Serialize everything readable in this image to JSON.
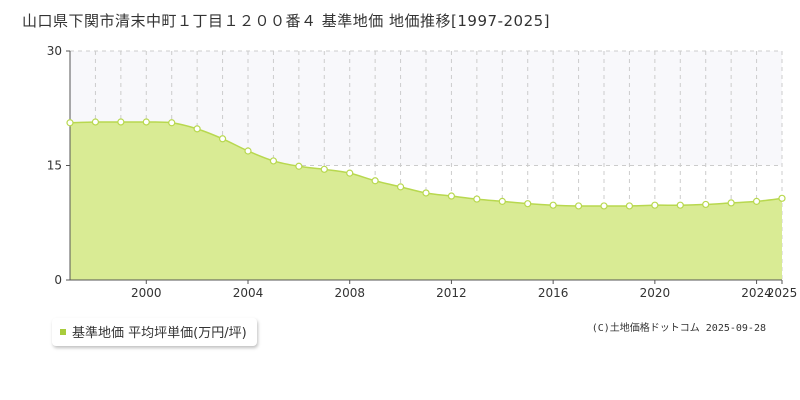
{
  "title": "山口県下関市清末中町１丁目１２００番４ 基準地価 地価推移[1997-2025]",
  "copyright": "(C)土地価格ドットコム 2025-09-28",
  "colors": {
    "area_fill": "#d9eb94",
    "line": "#b8d84f",
    "point_fill": "#ffffff",
    "point_stroke": "#b8d84f",
    "grid": "#cccccc",
    "axis": "#555555",
    "upper_band": "#f8f8fb",
    "legend_swatch": "#a8cc3c"
  },
  "chart_data": {
    "type": "area",
    "title": "山口県下関市清末中町１丁目１２００番４ 基準地価 地価推移[1997-2025]",
    "xlabel": "",
    "ylabel": "",
    "x": [
      1997,
      1998,
      1999,
      2000,
      2001,
      2002,
      2003,
      2004,
      2005,
      2006,
      2007,
      2008,
      2009,
      2010,
      2011,
      2012,
      2013,
      2014,
      2015,
      2016,
      2017,
      2018,
      2019,
      2020,
      2021,
      2022,
      2023,
      2024,
      2025
    ],
    "x_ticks": [
      "2000",
      "2004",
      "2008",
      "2012",
      "2016",
      "2020",
      "2024",
      "2025"
    ],
    "x_tick_values": [
      2000,
      2004,
      2008,
      2012,
      2016,
      2020,
      2024,
      2025
    ],
    "y_ticks": [
      "0",
      "15",
      "30"
    ],
    "y_tick_values": [
      0,
      15,
      30
    ],
    "xlim": [
      1997,
      2025
    ],
    "ylim": [
      0,
      30
    ],
    "grid": true,
    "legend_position": "bottom-left",
    "series": [
      {
        "name": "基準地価 平均坪単価(万円/坪)",
        "values": [
          20.6,
          20.7,
          20.7,
          20.7,
          20.6,
          19.8,
          18.5,
          16.9,
          15.6,
          14.9,
          14.5,
          14.0,
          13.0,
          12.2,
          11.4,
          11.0,
          10.6,
          10.3,
          10.0,
          9.8,
          9.7,
          9.7,
          9.7,
          9.8,
          9.8,
          9.9,
          10.1,
          10.3,
          10.7
        ]
      }
    ]
  }
}
